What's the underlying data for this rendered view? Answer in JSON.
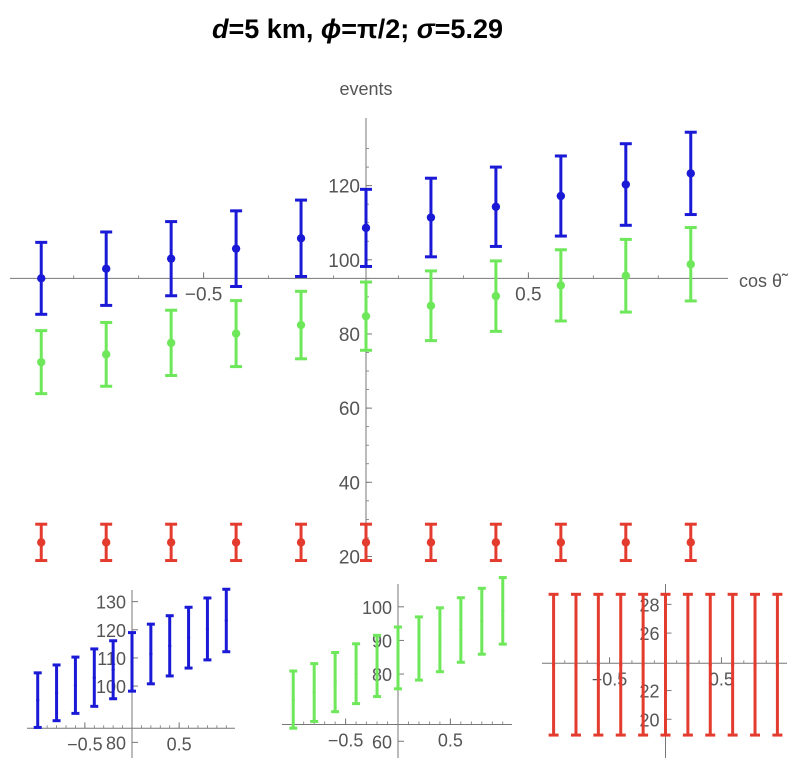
{
  "title": {
    "prefix_var": "d",
    "prefix_rest": "=5 km, ",
    "phi_sym": "ϕ",
    "phi_rest": "=π/2; ",
    "sigma_sym": "σ",
    "sigma_rest": "=5.29"
  },
  "colors": {
    "blue": "#1a1ad6",
    "green": "#6ee85a",
    "red": "#e43b2f",
    "axis": "#777777"
  },
  "chart_data": [
    {
      "type": "scatter",
      "subtype": "errorbar",
      "xlabel": "cos θ̃",
      "ylabel": "events",
      "xlim": [
        -1.05,
        1.05
      ],
      "ylim": [
        15,
        135
      ],
      "x_origin": 0,
      "y_origin": 95,
      "xticks": [
        -0.5,
        0.5
      ],
      "yticks": [
        20,
        40,
        60,
        80,
        100,
        120
      ],
      "x": [
        -1.0,
        -0.8,
        -0.6,
        -0.4,
        -0.2,
        0.0,
        0.2,
        0.4,
        0.6,
        0.8,
        1.0
      ],
      "series": [
        {
          "color": "blue",
          "values": [
            95.0,
            97.6,
            100.3,
            103.0,
            105.8,
            108.6,
            111.4,
            114.3,
            117.2,
            120.3,
            123.3
          ],
          "err": [
            9.7,
            9.9,
            10.0,
            10.2,
            10.3,
            10.4,
            10.6,
            10.7,
            10.8,
            11.0,
            11.1
          ]
        },
        {
          "color": "green",
          "values": [
            72.4,
            74.5,
            77.6,
            80.1,
            82.4,
            84.8,
            87.6,
            90.2,
            93.1,
            95.7,
            98.8
          ],
          "err": [
            8.5,
            8.6,
            8.8,
            8.9,
            9.1,
            9.2,
            9.4,
            9.5,
            9.6,
            9.8,
            9.9
          ]
        },
        {
          "color": "red",
          "values": [
            23.8,
            23.8,
            23.8,
            23.8,
            23.8,
            23.8,
            23.8,
            23.8,
            23.8,
            23.8,
            23.8
          ],
          "err": [
            4.9,
            4.9,
            4.9,
            4.9,
            4.9,
            4.9,
            4.9,
            4.9,
            4.9,
            4.9,
            4.9
          ]
        }
      ]
    },
    {
      "type": "scatter",
      "subtype": "errorbar",
      "series_ref": "blue",
      "xlim": [
        -1.05,
        1.05
      ],
      "ylim": [
        78,
        132
      ],
      "x_origin": 0,
      "y_origin": 85,
      "xticks": [
        -0.5,
        0.5
      ],
      "yticks": [
        80,
        100,
        110,
        120,
        130
      ]
    },
    {
      "type": "scatter",
      "subtype": "errorbar",
      "series_ref": "green",
      "xlim": [
        -1.05,
        1.05
      ],
      "ylim": [
        58,
        105
      ],
      "x_origin": 0,
      "y_origin": 65,
      "xticks": [
        -0.5,
        0.5
      ],
      "yticks": [
        60,
        80,
        90,
        100
      ]
    },
    {
      "type": "scatter",
      "subtype": "errorbar",
      "series_ref": "red",
      "xlim": [
        -1.05,
        1.05
      ],
      "ylim": [
        18,
        29
      ],
      "x_origin": 0,
      "y_origin": 23.9,
      "xticks": [
        -0.5,
        0.5
      ],
      "yticks": [
        20,
        22,
        26,
        28
      ]
    }
  ]
}
